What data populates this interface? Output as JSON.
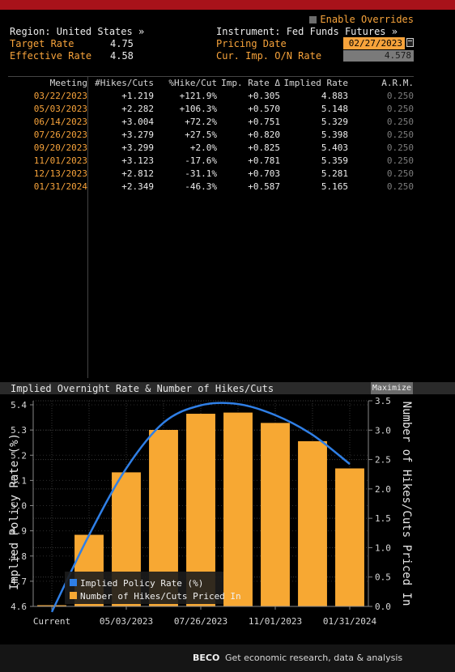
{
  "header": {
    "region": "Region: United States »",
    "target_rate_label": "Target Rate",
    "target_rate_value": "4.75",
    "effective_rate_label": "Effective Rate",
    "effective_rate_value": "4.58",
    "instrument": "Instrument: Fed Funds Futures »",
    "pricing_date_label": "Pricing Date",
    "pricing_date_value": "02/27/2023",
    "onrate_label": "Cur. Imp. O/N Rate",
    "onrate_value": "4.578",
    "enable_overrides": "Enable Overrides"
  },
  "table": {
    "columns": [
      "Meeting",
      "#Hikes/Cuts",
      "%Hike/Cut",
      "Imp. Rate Δ",
      "Implied Rate",
      "A.R.M."
    ],
    "rows": [
      [
        "03/22/2023",
        "+1.219",
        "+121.9%",
        "+0.305",
        "4.883",
        "0.250"
      ],
      [
        "05/03/2023",
        "+2.282",
        "+106.3%",
        "+0.570",
        "5.148",
        "0.250"
      ],
      [
        "06/14/2023",
        "+3.004",
        "+72.2%",
        "+0.751",
        "5.329",
        "0.250"
      ],
      [
        "07/26/2023",
        "+3.279",
        "+27.5%",
        "+0.820",
        "5.398",
        "0.250"
      ],
      [
        "09/20/2023",
        "+3.299",
        "+2.0%",
        "+0.825",
        "5.403",
        "0.250"
      ],
      [
        "11/01/2023",
        "+3.123",
        "-17.6%",
        "+0.781",
        "5.359",
        "0.250"
      ],
      [
        "12/13/2023",
        "+2.812",
        "-31.1%",
        "+0.703",
        "5.281",
        "0.250"
      ],
      [
        "01/31/2024",
        "+2.349",
        "-46.3%",
        "+0.587",
        "5.165",
        "0.250"
      ]
    ]
  },
  "chart_panel": {
    "title": "Implied Overnight Rate & Number of Hikes/Cuts",
    "maximize_label": "Maximize"
  },
  "chart_data": {
    "type": "bar",
    "categories": [
      "Current",
      "03/22/2023",
      "05/03/2023",
      "06/14/2023",
      "07/26/2023",
      "09/20/2023",
      "11/01/2023",
      "12/13/2023",
      "01/31/2024"
    ],
    "xtick_labels": [
      "Current",
      "05/03/2023",
      "07/26/2023",
      "11/01/2023",
      "01/31/2024"
    ],
    "series": [
      {
        "name": "Number of Hikes/Cuts Priced In",
        "type": "bar",
        "axis": "right",
        "color": "#f7a833",
        "values": [
          0,
          1.219,
          2.282,
          3.004,
          3.279,
          3.299,
          3.123,
          2.812,
          2.349
        ]
      },
      {
        "name": "Implied Policy Rate (%)",
        "type": "line",
        "axis": "left",
        "color": "#2f7fe6",
        "values": [
          4.578,
          4.883,
          5.148,
          5.329,
          5.398,
          5.403,
          5.359,
          5.281,
          5.165
        ]
      }
    ],
    "ylabel": "Implied Policy Rate (%)",
    "ylabel_right": "Number of Hikes/Cuts Priced In",
    "ylim": [
      4.6,
      5.4
    ],
    "ylim_right": [
      0.0,
      3.5
    ],
    "yticks": [
      "4.6",
      "4.7",
      "4.8",
      "4.9",
      "5.0",
      "5.1",
      "5.2",
      "5.3",
      "5.4"
    ],
    "yticks_right": [
      "0.0",
      "0.5",
      "1.0",
      "1.5",
      "2.0",
      "2.5",
      "3.0",
      "3.5"
    ],
    "grid": true,
    "legend_position": "bottom-left"
  },
  "footer": {
    "brand": "BECO",
    "text": "Get economic research, data & analysis"
  }
}
